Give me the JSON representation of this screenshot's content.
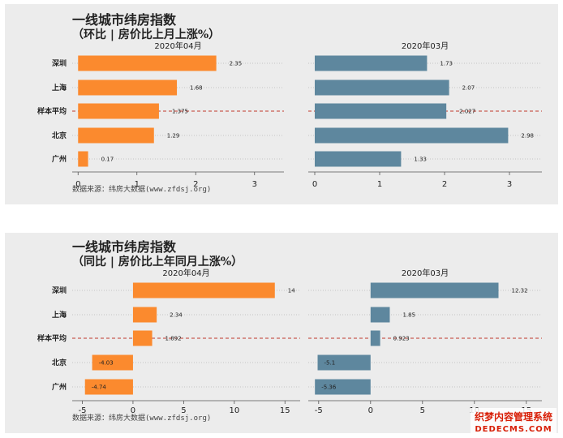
{
  "chart_data": [
    {
      "type": "bar",
      "orientation": "horizontal",
      "title": "一线城市纬房指数",
      "subtitle": "（环比 | 房价比上月上涨%）",
      "source": "数据来源：纬房大数据(www.zfdsj.org)",
      "categories": [
        "深圳",
        "上海",
        "样本平均",
        "北京",
        "广州"
      ],
      "reference_category": "样本平均",
      "panels": [
        {
          "title": "2020年04月",
          "color": "#fb8a2e",
          "values": [
            2.35,
            1.68,
            1.375,
            1.29,
            0.17
          ],
          "value_labels": [
            "2.35",
            "1.68",
            "1.375",
            "1.29",
            "0.17"
          ],
          "xlim": [
            -0.1,
            3.5
          ],
          "xticks": [
            0,
            1,
            2,
            3
          ]
        },
        {
          "title": "2020年03月",
          "color": "#5e879e",
          "values": [
            1.73,
            2.07,
            2.027,
            2.98,
            1.33
          ],
          "value_labels": [
            "1.73",
            "2.07",
            "2.027",
            "2.98",
            "1.33"
          ],
          "xlim": [
            -0.1,
            3.5
          ],
          "xticks": [
            0,
            1,
            2,
            3
          ]
        }
      ],
      "grid": "dotted horizontal guides per category",
      "reference_line_color": "#c0392b"
    },
    {
      "type": "bar",
      "orientation": "horizontal",
      "title": "一线城市纬房指数",
      "subtitle": "（同比 | 房价比上年同月上涨%）",
      "source": "数据来源：纬房大数据(www.zfdsj.org)",
      "categories": [
        "深圳",
        "上海",
        "样本平均",
        "北京",
        "广州"
      ],
      "reference_category": "样本平均",
      "panels": [
        {
          "title": "2020年04月",
          "color": "#fb8a2e",
          "values": [
            14,
            2.34,
            1.892,
            -4.03,
            -4.74
          ],
          "value_labels": [
            "14",
            "2.34",
            "1.892",
            "-4.03",
            "-4.74"
          ],
          "xlim": [
            -6,
            16.5
          ],
          "xticks": [
            -5,
            0,
            5,
            10,
            15
          ]
        },
        {
          "title": "2020年03月",
          "color": "#5e879e",
          "values": [
            12.32,
            1.85,
            0.923,
            -5.1,
            -5.36
          ],
          "value_labels": [
            "12.32",
            "1.85",
            "0.923",
            "-5.1",
            "-5.36"
          ],
          "xlim": [
            -6,
            16.5
          ],
          "xticks": [
            -5,
            0,
            5,
            10,
            15
          ]
        }
      ],
      "grid": "dotted horizontal guides per category",
      "reference_line_color": "#c0392b"
    }
  ],
  "watermark": {
    "line1": "织梦内容管理系统",
    "line2": "DEDECMS.COM"
  }
}
